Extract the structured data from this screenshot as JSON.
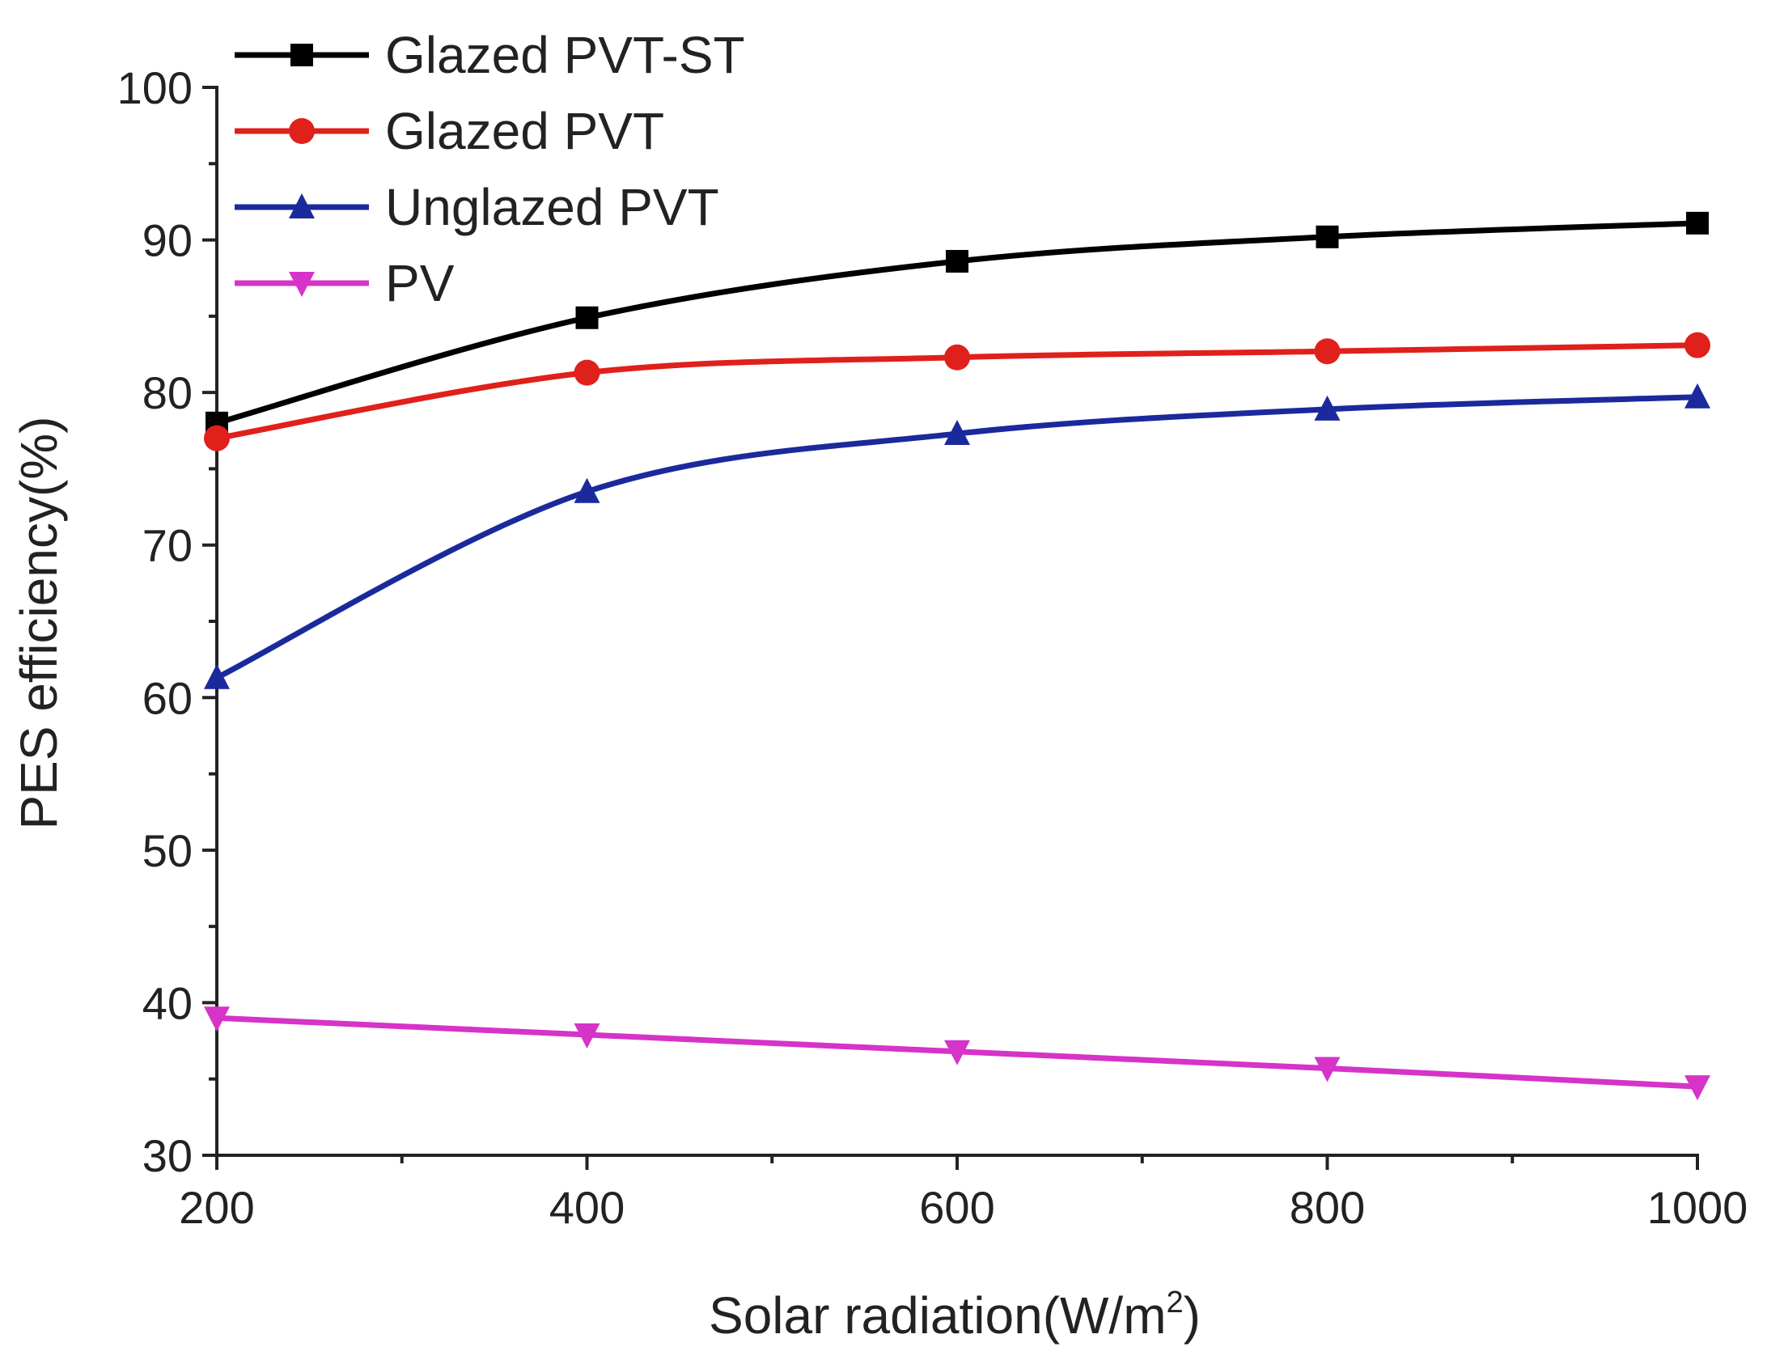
{
  "chart_data": {
    "type": "line",
    "title": "",
    "xlabel": "Solar radiation(W/m",
    "xlabel_superscript": "2",
    "xlabel_suffix": ")",
    "ylabel": "PES efficiency(%)",
    "xlim": [
      200,
      1000
    ],
    "ylim": [
      30,
      100
    ],
    "x_ticks": [
      200,
      400,
      600,
      800,
      1000
    ],
    "x_tick_labels": [
      "200",
      "400",
      "600",
      "800",
      "1000"
    ],
    "y_ticks": [
      30,
      40,
      50,
      60,
      70,
      80,
      90,
      100
    ],
    "y_tick_labels": [
      "30",
      "40",
      "50",
      "60",
      "70",
      "80",
      "90",
      "100"
    ],
    "x_minor_step": 100,
    "y_minor_step": 5,
    "grid": false,
    "legend_position": "top-left",
    "x": [
      200,
      400,
      600,
      800,
      1000
    ],
    "series": [
      {
        "name": "Glazed PVT-ST",
        "color": "#000000",
        "marker": "square",
        "values": [
          78.0,
          84.9,
          88.6,
          90.2,
          91.1
        ]
      },
      {
        "name": "Glazed PVT",
        "color": "#e0201b",
        "marker": "circle",
        "values": [
          77.0,
          81.3,
          82.3,
          82.7,
          83.1
        ]
      },
      {
        "name": "Unglazed PVT",
        "color": "#1a2a9c",
        "marker": "triangle-up",
        "values": [
          61.3,
          73.5,
          77.3,
          78.9,
          79.7
        ]
      },
      {
        "name": "PV",
        "color": "#d633c8",
        "marker": "triangle-down",
        "values": [
          39.0,
          37.9,
          36.8,
          35.7,
          34.5
        ]
      }
    ]
  }
}
